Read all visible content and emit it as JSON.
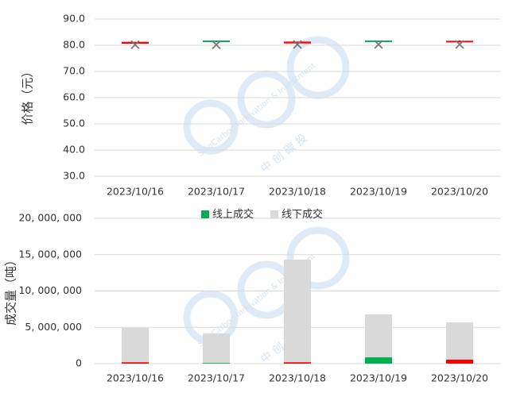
{
  "chart_data": [
    {
      "type": "candlestick",
      "y_label": "价格（元）",
      "categories": [
        "2023/10/16",
        "2023/10/17",
        "2023/10/18",
        "2023/10/19",
        "2023/10/20"
      ],
      "open": [
        80.6,
        81.8,
        80.7,
        81.8,
        81.6
      ],
      "close": [
        81.3,
        81.7,
        81.4,
        81.7,
        81.7
      ],
      "high": [
        81.3,
        81.8,
        81.4,
        81.8,
        81.9
      ],
      "low": [
        80.6,
        81.7,
        80.7,
        81.7,
        81.6
      ],
      "markers": [
        80.2,
        80.2,
        80.3,
        80.3,
        80.3
      ],
      "up_color": "#ff0000",
      "down_color": "#00b050",
      "marker_color": "#777777",
      "ylim": [
        30,
        90
      ],
      "yticks": [
        {
          "value": 30,
          "label": "30.0"
        },
        {
          "value": 40,
          "label": "40.0"
        },
        {
          "value": 50,
          "label": "50.0"
        },
        {
          "value": 60,
          "label": "60.0"
        },
        {
          "value": 70,
          "label": "70.0"
        },
        {
          "value": 80,
          "label": "80.0"
        },
        {
          "value": 90,
          "label": "90.0"
        }
      ],
      "grid": true
    },
    {
      "type": "stacked_bar",
      "y_label": "成交量（吨）",
      "categories": [
        "2023/10/16",
        "2023/10/17",
        "2023/10/18",
        "2023/10/19",
        "2023/10/20"
      ],
      "series": [
        {
          "name": "线上成交",
          "color": "#00b050",
          "point_colors": [
            "#ff0000",
            "#00b050",
            "#ff0000",
            "#00b050",
            "#ff0000"
          ],
          "values": [
            200000,
            100000,
            200000,
            870000,
            550000
          ]
        },
        {
          "name": "线下成交",
          "color": "#d9d9d9",
          "values": [
            4720000,
            4050000,
            14120000,
            5910000,
            5130000
          ]
        }
      ],
      "ylim": [
        0,
        20000000
      ],
      "yticks": [
        0,
        {
          "value": 5000000,
          "label": "5, 000, 000"
        },
        {
          "value": 10000000,
          "label": "10, 000, 000"
        },
        {
          "value": 15000000,
          "label": "15, 000, 000"
        },
        {
          "value": 20000000,
          "label": "20, 000, 000"
        }
      ],
      "grid": true
    }
  ],
  "watermark": {
    "en": "SinoCarbon Innovation & Investment",
    "cn": "中 创 碳 投"
  }
}
